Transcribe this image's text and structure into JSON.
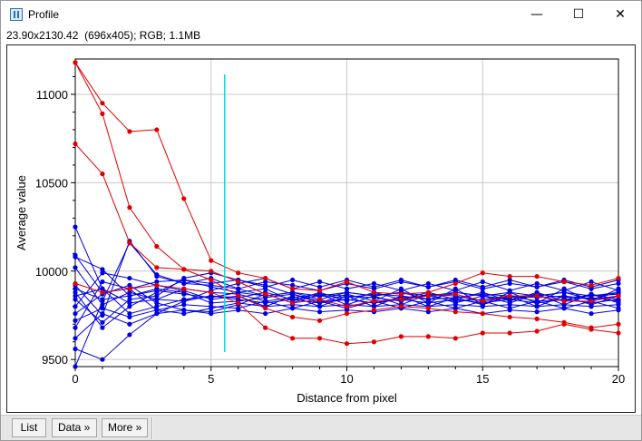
{
  "window": {
    "title": "Profile",
    "info": "23.90x2130.42  (696x405); RGB; 1.1MB",
    "controls": {
      "minimize": "—",
      "maximize": "☐",
      "close": "✕"
    }
  },
  "buttons": {
    "list": "List",
    "data": "Data »",
    "more": "More »"
  },
  "colors": {
    "red_series": "#e00000",
    "blue_series": "#0000e0",
    "marker": "#00dddd",
    "grid": "#c8c8c8"
  },
  "chart_data": {
    "type": "line",
    "xlabel": "Distance from pixel",
    "ylabel": "Average value",
    "xlim": [
      0,
      20
    ],
    "ylim": [
      9460,
      11200
    ],
    "xticks": [
      0,
      5,
      10,
      15,
      20
    ],
    "yticks": [
      9500,
      10000,
      10500,
      11000
    ],
    "grid": true,
    "cursor_x": 5.5,
    "x": [
      0,
      1,
      2,
      3,
      4,
      5,
      6,
      7,
      8,
      9,
      10,
      11,
      12,
      13,
      14,
      15,
      16,
      17,
      18,
      19,
      20
    ],
    "red_series": [
      {
        "values": [
          11180,
          10950,
          10790,
          10800,
          10410,
          10060,
          9990,
          9960,
          9900,
          9890,
          9940,
          9880,
          9870,
          9880,
          9930,
          9990,
          9970,
          9970,
          9940,
          9920,
          9960
        ]
      },
      {
        "values": [
          11180,
          10890,
          10360,
          10140,
          10010,
          10000,
          9940,
          9870,
          9820,
          9840,
          9800,
          9830,
          9840,
          9860,
          9870,
          9830,
          9860,
          9860,
          9830,
          9830,
          9860
        ]
      },
      {
        "values": [
          10720,
          10550,
          10160,
          10020,
          10010,
          9950,
          9860,
          9790,
          9740,
          9720,
          9760,
          9780,
          9800,
          9790,
          9770,
          9760,
          9740,
          9730,
          9710,
          9680,
          9700
        ]
      },
      {
        "values": [
          9930,
          9880,
          9900,
          9920,
          9900,
          9880,
          9820,
          9680,
          9620,
          9620,
          9590,
          9600,
          9630,
          9630,
          9620,
          9650,
          9650,
          9660,
          9700,
          9670,
          9650
        ]
      }
    ],
    "blue_series": [
      {
        "values": [
          10250,
          9900,
          9760,
          9800,
          9840,
          9860,
          9850,
          9880,
          9840,
          9860,
          9850,
          9870,
          9860,
          9840,
          9850,
          9870,
          9860,
          9850,
          9860,
          9840,
          9860
        ]
      },
      {
        "values": [
          10080,
          10010,
          9860,
          9900,
          9880,
          9820,
          9830,
          9850,
          9870,
          9830,
          9840,
          9820,
          9850,
          9860,
          9830,
          9840,
          9860,
          9830,
          9840,
          9850,
          9830
        ]
      },
      {
        "values": [
          10020,
          9810,
          9880,
          9840,
          9900,
          9880,
          9870,
          9830,
          9850,
          9870,
          9860,
          9850,
          9830,
          9870,
          9860,
          9830,
          9850,
          9870,
          9850,
          9860,
          9870
        ]
      },
      {
        "values": [
          9920,
          9750,
          10170,
          9970,
          9930,
          9960,
          9900,
          9860,
          9880,
          9840,
          9880,
          9860,
          9880,
          9840,
          9880,
          9860,
          9840,
          9860,
          9880,
          9840,
          9880
        ]
      },
      {
        "values": [
          9880,
          9680,
          9800,
          9880,
          9950,
          9910,
          9880,
          9900,
          9830,
          9880,
          9830,
          9880,
          9840,
          9880,
          9840,
          9880,
          9830,
          9880,
          9830,
          9870,
          9840
        ]
      },
      {
        "values": [
          9840,
          9710,
          9840,
          9860,
          9960,
          9990,
          9950,
          9920,
          9870,
          9820,
          9870,
          9830,
          9900,
          9820,
          9900,
          9810,
          9880,
          9820,
          9900,
          9830,
          9900
        ]
      },
      {
        "values": [
          9800,
          9990,
          9960,
          9920,
          9890,
          9840,
          9860,
          9800,
          9860,
          9800,
          9860,
          9800,
          9860,
          9800,
          9850,
          9810,
          9860,
          9800,
          9860,
          9810,
          9860
        ]
      },
      {
        "values": [
          9760,
          9870,
          9920,
          9820,
          9780,
          9770,
          9810,
          9870,
          9820,
          9870,
          9810,
          9860,
          9810,
          9870,
          9820,
          9860,
          9820,
          9870,
          9810,
          9870,
          9820
        ]
      },
      {
        "values": [
          9720,
          9790,
          9740,
          9780,
          9810,
          9800,
          9790,
          9830,
          9790,
          9830,
          9790,
          9830,
          9790,
          9830,
          9790,
          9830,
          9790,
          9830,
          9790,
          9830,
          9790
        ]
      },
      {
        "values": [
          9680,
          9940,
          9900,
          9940,
          9950,
          9930,
          9950,
          9910,
          9950,
          9910,
          9950,
          9910,
          9950,
          9910,
          9950,
          9910,
          9950,
          9910,
          9950,
          9910,
          9950
        ]
      },
      {
        "values": [
          9620,
          9760,
          9700,
          9760,
          9780,
          9760,
          9780,
          9760,
          9790,
          9770,
          9780,
          9770,
          9790,
          9770,
          9790,
          9760,
          9780,
          9770,
          9790,
          9760,
          9780
        ]
      },
      {
        "values": [
          9560,
          9500,
          9640,
          9760,
          9830,
          9890,
          9930,
          9960,
          9900,
          9940,
          9900,
          9930,
          9890,
          9930,
          9890,
          9940,
          9890,
          9930,
          9890,
          9940,
          9890
        ]
      },
      {
        "values": [
          9460,
          9830,
          10160,
          9980,
          9930,
          9920,
          9900,
          9940,
          9920,
          9890,
          9930,
          9900,
          9940,
          9910,
          9940,
          9900,
          9930,
          9910,
          9940,
          9900,
          9930
        ]
      },
      {
        "values": [
          9900,
          9840,
          9860,
          9890,
          9870,
          9850,
          9880,
          9860,
          9880,
          9860,
          9880,
          9860,
          9880,
          9860,
          9880,
          9860,
          9880,
          9860,
          9880,
          9860,
          9880
        ]
      },
      {
        "values": [
          9860,
          9900,
          9820,
          9840,
          9830,
          9860,
          9840,
          9820,
          9840,
          9820,
          9840,
          9820,
          9840,
          9820,
          9840,
          9820,
          9840,
          9820,
          9840,
          9820,
          9840
        ]
      },
      {
        "values": [
          10090,
          9880,
          9900,
          9780,
          9760,
          9790,
          9820,
          9800,
          9810,
          9800,
          9810,
          9800,
          9810,
          9800,
          9810,
          9800,
          9810,
          9800,
          9810,
          9800,
          9810
        ]
      }
    ]
  }
}
